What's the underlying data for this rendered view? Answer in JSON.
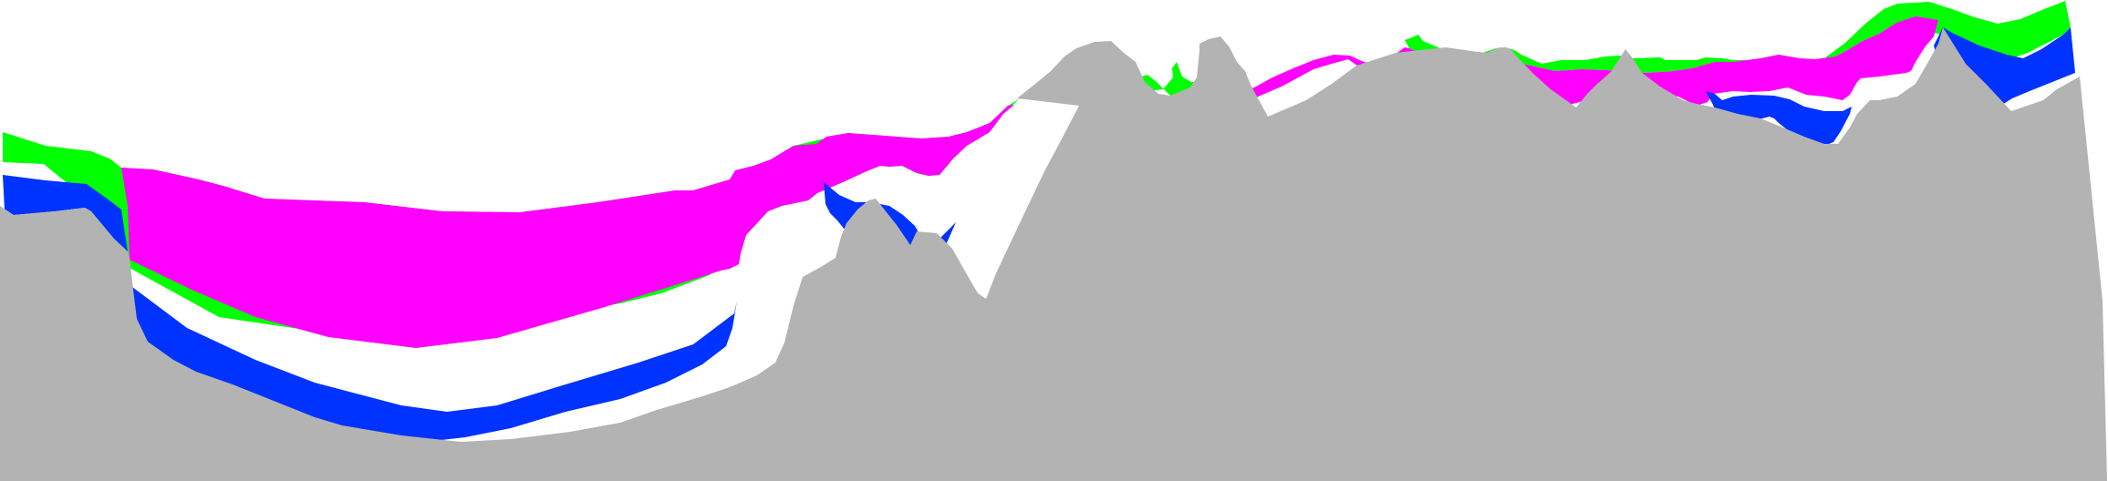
{
  "diagram": {
    "kind": "geological-cross-section",
    "background_color": "#ffffff",
    "layers": [
      {
        "id": "basement",
        "color": "#b3b3b3"
      },
      {
        "id": "blue-layer",
        "color": "#0033ff"
      },
      {
        "id": "magenta-layer",
        "color": "#ff00ff"
      },
      {
        "id": "green-layer",
        "color": "#00ff00"
      }
    ]
  }
}
